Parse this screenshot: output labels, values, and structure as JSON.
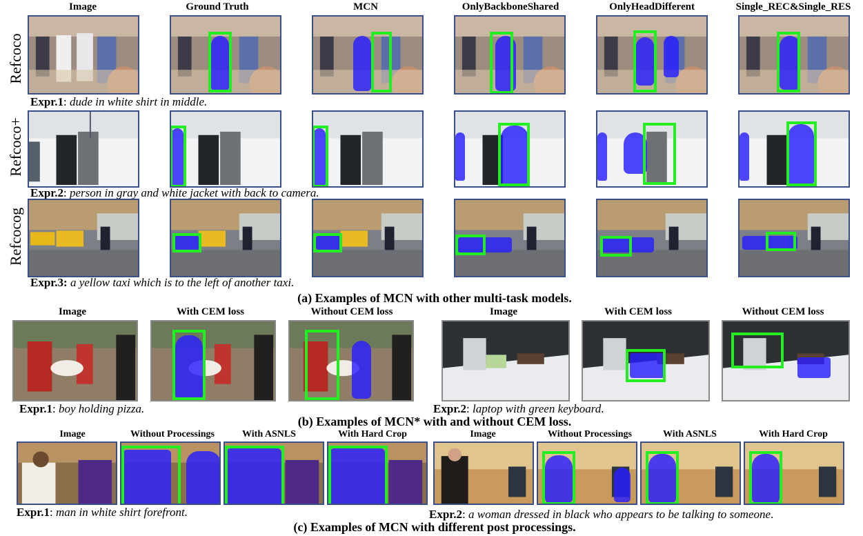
{
  "section_a": {
    "columns": [
      "Image",
      "Ground Truth",
      "MCN",
      "OnlyBackboneShared",
      "OnlyHeadDifferent",
      "Single_REC&Single_RES"
    ],
    "rows": [
      {
        "label": "Refcoco",
        "expr_label": "Expr.1",
        "expr_text": "dude in white shirt in middle."
      },
      {
        "label": "Refcoco+",
        "expr_label": "Expr.2",
        "expr_text": "person in gray and white jacket with back to camera."
      },
      {
        "label": "Refcocog",
        "expr_label": "Expr.3:",
        "expr_text": "a yellow taxi which is to the left of another taxi."
      }
    ],
    "caption": "(a) Examples of MCN with other multi-task models."
  },
  "section_b": {
    "columns_left": [
      "Image",
      "With CEM loss",
      "Without CEM loss"
    ],
    "columns_right": [
      "Image",
      "With CEM loss",
      "Without CEM loss"
    ],
    "expr1_label": "Expr.1",
    "expr1_text": "boy holding pizza.",
    "expr2_label": "Expr.2",
    "expr2_text": "laptop with green keyboard",
    "caption": "(b) Examples of MCN* with and without CEM loss."
  },
  "section_c": {
    "columns_left": [
      "Image",
      "Without Processings",
      "With ASNLS",
      "With Hard Crop"
    ],
    "columns_right": [
      "Image",
      "Without Processings",
      "With ASNLS",
      "With Hard Crop"
    ],
    "expr1_label": "Expr.1",
    "expr1_text": "man in white shirt forefront.",
    "expr2_label": "Expr.2",
    "expr2_text": "a woman dressed in black who appears to be talking to someone",
    "caption": "(c) Examples of MCN with different post processings."
  },
  "colors": {
    "bbox": "#22ee22",
    "mask": "#2a1eff",
    "frame": "#3a4f88"
  }
}
